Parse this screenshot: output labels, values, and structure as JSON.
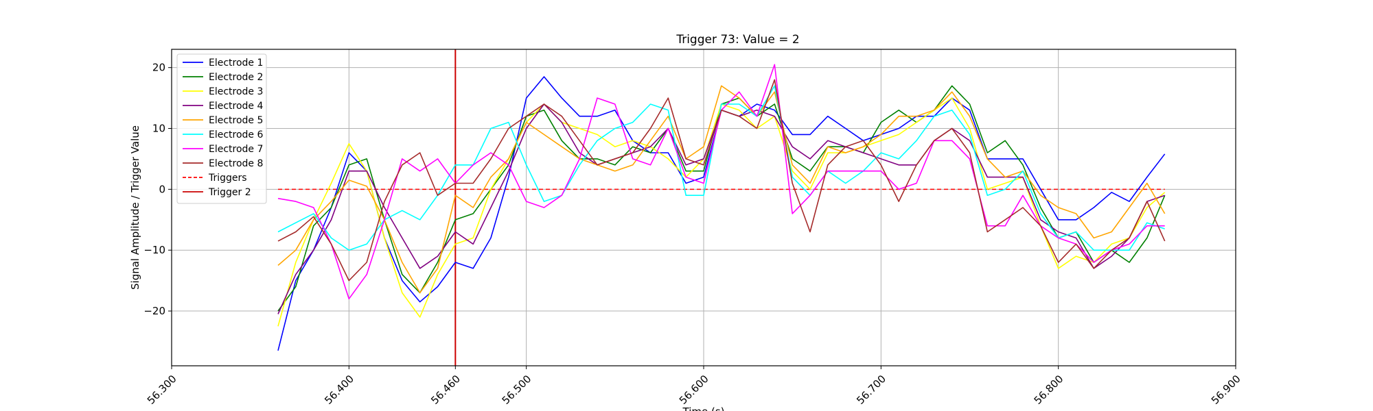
{
  "chart_data": {
    "type": "line",
    "title": "Trigger 73: Value = 2",
    "xlabel": "Time (s)",
    "ylabel": "Signal Amplitude / Trigger Value",
    "xlim": [
      56.3,
      56.9
    ],
    "ylim": [
      -29,
      23
    ],
    "xticks": [
      "56.300",
      "56.400",
      "56.460",
      "56.500",
      "56.600",
      "56.700",
      "56.800",
      "56.900"
    ],
    "xtick_values": [
      56.3,
      56.4,
      56.46,
      56.5,
      56.6,
      56.7,
      56.8,
      56.9
    ],
    "yticks": [
      "20",
      "10",
      "0",
      "−10",
      "−20"
    ],
    "ytick_values": [
      20,
      10,
      0,
      -10,
      -20
    ],
    "grid": true,
    "legend_position": "upper-left",
    "x": [
      56.36,
      56.37,
      56.38,
      56.39,
      56.4,
      56.41,
      56.42,
      56.43,
      56.44,
      56.45,
      56.46,
      56.47,
      56.48,
      56.49,
      56.5,
      56.51,
      56.52,
      56.53,
      56.54,
      56.55,
      56.56,
      56.57,
      56.58,
      56.59,
      56.6,
      56.61,
      56.62,
      56.63,
      56.64,
      56.65,
      56.66,
      56.67,
      56.68,
      56.69,
      56.7,
      56.71,
      56.72,
      56.73,
      56.74,
      56.75,
      56.76,
      56.77,
      56.78,
      56.79,
      56.8,
      56.81,
      56.82,
      56.83,
      56.84,
      56.85,
      56.86
    ],
    "series": [
      {
        "name": "Electrode 1",
        "color": "#0000ff",
        "values": [
          -26.5,
          -15,
          -10,
          -3,
          6,
          3,
          -8,
          -15,
          -18.5,
          -16,
          -12,
          -13,
          -8,
          2,
          15,
          18.5,
          15,
          12,
          12,
          13,
          8,
          6,
          6,
          1,
          2,
          13,
          12,
          14,
          13,
          9,
          9,
          12,
          10,
          8,
          9,
          10,
          12,
          12,
          15,
          13,
          5,
          5,
          5,
          0,
          -5,
          -5,
          -3,
          -0.5,
          -2,
          2,
          5.8
        ]
      },
      {
        "name": "Electrode 2",
        "color": "#008000",
        "values": [
          -20,
          -16,
          -6,
          -3,
          4,
          5,
          -5,
          -14,
          -17,
          -12,
          -5,
          -4,
          0,
          4,
          12,
          13,
          8,
          5,
          5,
          4,
          7,
          6,
          10,
          3,
          3,
          14,
          15,
          12,
          14,
          5,
          3,
          7,
          7,
          6,
          11,
          13,
          11,
          13,
          17,
          14,
          6,
          8,
          4,
          -3,
          -8,
          -7,
          -12,
          -10,
          -12,
          -8,
          -1
        ]
      },
      {
        "name": "Electrode 3",
        "color": "#ffff00",
        "values": [
          -22.5,
          -12,
          -5,
          1,
          7.5,
          3,
          -8,
          -17,
          -21,
          -14,
          -9,
          -8,
          0,
          5,
          11,
          14,
          11,
          10,
          9,
          7,
          8,
          7,
          5,
          2,
          5,
          14,
          13,
          10,
          12,
          3,
          0,
          6,
          6,
          7,
          8,
          9,
          11,
          13,
          15,
          10,
          0,
          1,
          2,
          -6,
          -13,
          -11,
          -12,
          -9,
          -8,
          -3,
          -0.5
        ]
      },
      {
        "name": "Electrode 4",
        "color": "#800080",
        "values": [
          -20.5,
          -14,
          -10,
          -5,
          3,
          3,
          -3,
          -8,
          -13,
          -11,
          -7,
          -9,
          -3,
          3,
          10,
          14,
          11,
          6,
          4,
          5,
          6,
          7,
          10,
          4,
          5,
          13,
          12,
          13,
          12,
          7,
          5,
          8,
          7,
          6,
          5,
          4,
          4,
          8,
          10,
          8,
          2,
          2,
          2,
          -5,
          -7,
          -8,
          -13,
          -11,
          -8,
          -2,
          -1
        ]
      },
      {
        "name": "Electrode 5",
        "color": "#ffa500",
        "values": [
          -12.5,
          -10,
          -5,
          -2,
          1.5,
          0.5,
          -5,
          -12,
          -17,
          -13,
          -1,
          -3,
          2,
          5,
          11,
          9,
          7,
          5,
          4,
          3,
          4,
          8,
          12,
          5,
          7,
          17,
          15,
          12,
          16,
          4,
          1,
          7,
          6,
          7,
          9,
          12,
          12,
          13,
          16,
          12,
          5,
          2,
          3,
          -1,
          -3,
          -4,
          -8,
          -7,
          -3,
          1,
          -4
        ]
      },
      {
        "name": "Electrode 6",
        "color": "#00ffff",
        "values": [
          -7,
          -5.5,
          -4,
          -8,
          -10,
          -9,
          -5,
          -3.5,
          -5,
          -1,
          4,
          4,
          10,
          11,
          4,
          -2,
          -1,
          4,
          8,
          10,
          11,
          14,
          13,
          -1,
          -1,
          14,
          14,
          12,
          17,
          2,
          -1,
          3,
          1,
          3,
          6,
          5,
          8,
          12,
          13,
          9,
          -1,
          0,
          3,
          -4,
          -8,
          -7,
          -10,
          -10,
          -10,
          -5.5,
          -6.5
        ]
      },
      {
        "name": "Electrode 7",
        "color": "#ff00ff",
        "values": [
          -1.5,
          -2,
          -3,
          -9,
          -18,
          -14,
          -5,
          5,
          3,
          5,
          1,
          4,
          6,
          4,
          -2,
          -3,
          -1,
          5,
          15,
          14,
          5,
          4,
          10,
          2,
          1,
          13,
          16,
          12,
          20.5,
          -4,
          -1,
          3,
          3,
          3,
          3,
          0,
          1,
          8,
          8,
          5,
          -6,
          -6,
          -1,
          -6,
          -8,
          -9,
          -12,
          -10,
          -9,
          -6,
          -6
        ]
      },
      {
        "name": "Electrode 8",
        "color": "#a52a2a",
        "values": [
          -8.5,
          -7,
          -4.5,
          -9,
          -15,
          -12,
          -2,
          4,
          6,
          -1,
          1,
          1,
          5,
          10,
          12,
          14,
          12,
          8,
          4,
          5,
          6,
          10,
          15,
          5,
          4,
          13,
          12,
          10,
          18,
          1,
          -7,
          4,
          7,
          8,
          4,
          -2,
          4,
          8,
          10,
          6,
          -7,
          -5,
          -3,
          -6,
          -12,
          -9,
          -13,
          -10,
          -8,
          -2,
          -8.5
        ]
      }
    ],
    "triggers": {
      "name": "Triggers",
      "color": "#ff0000",
      "style": "dashed",
      "x": [
        56.36,
        56.86
      ],
      "value": 0
    },
    "trigger_marker": {
      "name": "Trigger 2",
      "color": "#cc0000",
      "x": 56.46
    },
    "legend_labels": [
      "Electrode 1",
      "Electrode 2",
      "Electrode 3",
      "Electrode 4",
      "Electrode 5",
      "Electrode 6",
      "Electrode 7",
      "Electrode 8",
      "Triggers",
      "Trigger 2"
    ]
  }
}
